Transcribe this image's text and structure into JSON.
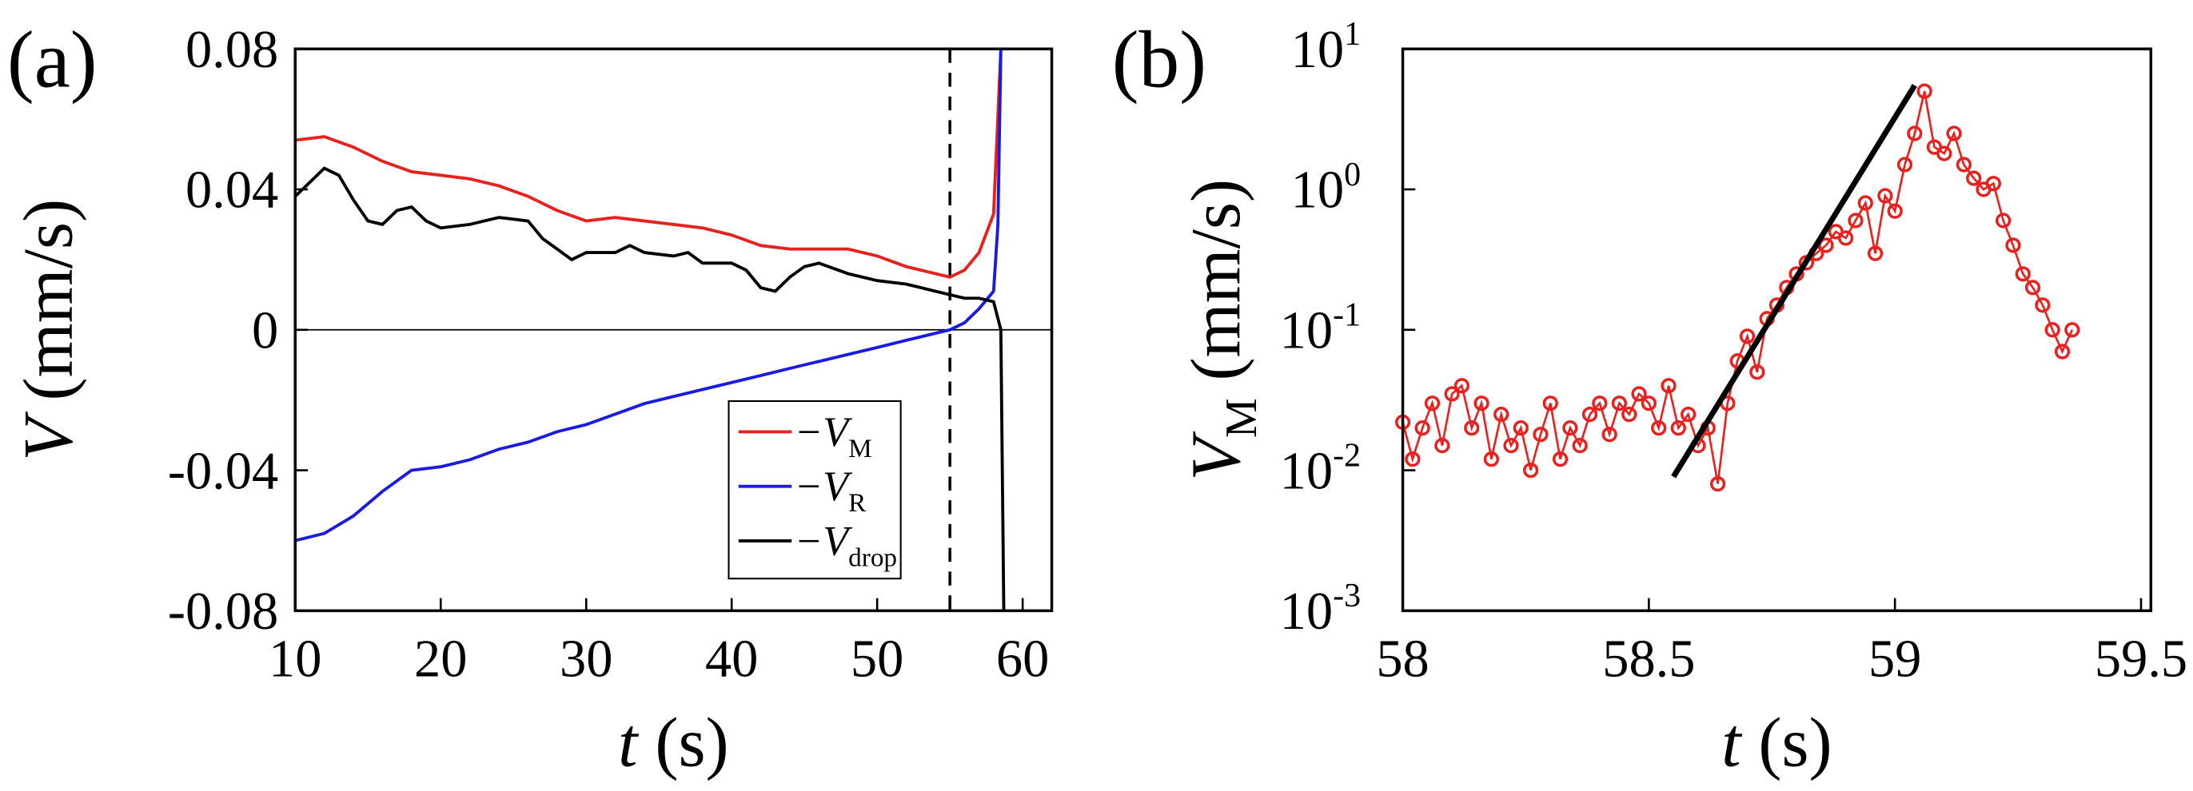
{
  "chart_data": [
    {
      "type": "line",
      "panel": "(a)",
      "xlabel": "t",
      "xlabel_unit": "(s)",
      "ylabel": "V",
      "ylabel_unit": "(mm/s)",
      "xlim": [
        10,
        62
      ],
      "ylim": [
        -0.08,
        0.08
      ],
      "xticks": [
        10,
        20,
        30,
        40,
        50,
        60
      ],
      "yticks": [
        -0.08,
        -0.04,
        0,
        0.04,
        0.08
      ],
      "hline": 0,
      "vline": 55,
      "series": [
        {
          "name": "−V",
          "subscript": "M",
          "color": "#e8211e",
          "x": [
            10,
            12,
            14,
            16,
            18,
            20,
            22,
            24,
            26,
            28,
            30,
            32,
            34,
            36,
            38,
            40,
            42,
            44,
            46,
            48,
            50,
            52,
            54,
            55,
            56,
            57,
            58,
            58.5
          ],
          "values": [
            0.054,
            0.055,
            0.052,
            0.048,
            0.045,
            0.044,
            0.043,
            0.041,
            0.038,
            0.034,
            0.031,
            0.032,
            0.031,
            0.03,
            0.029,
            0.027,
            0.024,
            0.023,
            0.023,
            0.023,
            0.021,
            0.018,
            0.016,
            0.015,
            0.017,
            0.022,
            0.033,
            0.08
          ]
        },
        {
          "name": "−V",
          "subscript": "R",
          "color": "#1a1ae0",
          "x": [
            10,
            12,
            14,
            16,
            18,
            20,
            22,
            24,
            26,
            28,
            30,
            32,
            34,
            36,
            38,
            40,
            42,
            44,
            46,
            48,
            50,
            52,
            54,
            55,
            56,
            57,
            58,
            58.3,
            58.5
          ],
          "values": [
            -0.06,
            -0.058,
            -0.053,
            -0.046,
            -0.04,
            -0.039,
            -0.037,
            -0.034,
            -0.032,
            -0.029,
            -0.027,
            -0.024,
            -0.021,
            -0.019,
            -0.017,
            -0.015,
            -0.013,
            -0.011,
            -0.009,
            -0.007,
            -0.005,
            -0.003,
            -0.001,
            0.0,
            0.002,
            0.006,
            0.011,
            0.03,
            0.08
          ]
        },
        {
          "name": "−V",
          "subscript": "drop",
          "color": "#000000",
          "x": [
            10,
            11,
            12,
            13,
            14,
            15,
            16,
            17,
            18,
            19,
            20,
            22,
            24,
            26,
            27,
            28,
            29,
            30,
            32,
            33,
            34,
            36,
            37,
            38,
            40,
            41,
            42,
            43,
            44,
            45,
            46,
            48,
            50,
            52,
            54,
            56,
            57,
            58,
            58.5,
            58.7
          ],
          "values": [
            0.038,
            0.042,
            0.046,
            0.044,
            0.037,
            0.031,
            0.03,
            0.034,
            0.035,
            0.031,
            0.029,
            0.03,
            0.032,
            0.031,
            0.026,
            0.023,
            0.02,
            0.022,
            0.022,
            0.024,
            0.022,
            0.021,
            0.022,
            0.019,
            0.019,
            0.017,
            0.012,
            0.011,
            0.015,
            0.018,
            0.019,
            0.016,
            0.014,
            0.013,
            0.011,
            0.009,
            0.009,
            0.008,
            0.0,
            -0.08
          ]
        }
      ]
    },
    {
      "type": "log-scatter",
      "panel": "(b)",
      "xlabel": "t",
      "xlabel_unit": "(s)",
      "ylabel": "V",
      "ylabel_sub": "M",
      "ylabel_unit": "(mm/s)",
      "xlim": [
        58,
        59.52
      ],
      "ylim": [
        0.001,
        10
      ],
      "log_y": true,
      "xticks": [
        58,
        58.5,
        59,
        59.5
      ],
      "yticks": [
        {
          "value": 0.001,
          "label": "10",
          "exponent": "-3"
        },
        {
          "value": 0.01,
          "label": "10",
          "exponent": "-2"
        },
        {
          "value": 0.1,
          "label": "10",
          "exponent": "-1"
        },
        {
          "value": 1,
          "label": "10",
          "exponent": "0"
        },
        {
          "value": 10,
          "label": "10",
          "exponent": "1"
        }
      ],
      "color": "#e8211e",
      "x": [
        58.0,
        58.02,
        58.04,
        58.06,
        58.08,
        58.1,
        58.12,
        58.14,
        58.16,
        58.18,
        58.2,
        58.22,
        58.24,
        58.26,
        58.28,
        58.3,
        58.32,
        58.34,
        58.36,
        58.38,
        58.4,
        58.42,
        58.44,
        58.46,
        58.48,
        58.5,
        58.52,
        58.54,
        58.56,
        58.58,
        58.6,
        58.62,
        58.64,
        58.66,
        58.68,
        58.7,
        58.72,
        58.74,
        58.76,
        58.78,
        58.8,
        58.82,
        58.84,
        58.86,
        58.88,
        58.9,
        58.92,
        58.94,
        58.96,
        58.98,
        59.0,
        59.02,
        59.04,
        59.06,
        59.08,
        59.1,
        59.12,
        59.14,
        59.16,
        59.18,
        59.2,
        59.22,
        59.24,
        59.26,
        59.28,
        59.3,
        59.32,
        59.34,
        59.36
      ],
      "values": [
        0.022,
        0.012,
        0.02,
        0.03,
        0.015,
        0.035,
        0.04,
        0.02,
        0.03,
        0.012,
        0.025,
        0.015,
        0.02,
        0.01,
        0.018,
        0.03,
        0.012,
        0.02,
        0.015,
        0.025,
        0.03,
        0.018,
        0.03,
        0.025,
        0.035,
        0.03,
        0.02,
        0.04,
        0.02,
        0.025,
        0.015,
        0.02,
        0.008,
        0.03,
        0.06,
        0.09,
        0.05,
        0.12,
        0.15,
        0.2,
        0.25,
        0.3,
        0.35,
        0.4,
        0.5,
        0.45,
        0.6,
        0.8,
        0.35,
        0.9,
        0.7,
        1.5,
        2.5,
        5.0,
        2.0,
        1.8,
        2.5,
        1.5,
        1.2,
        1.0,
        1.1,
        0.6,
        0.4,
        0.25,
        0.2,
        0.15,
        0.1,
        0.07,
        0.1
      ],
      "fit": {
        "color": "#000000",
        "x": [
          58.55,
          59.04
        ],
        "values": [
          0.009,
          5.5
        ]
      }
    }
  ]
}
